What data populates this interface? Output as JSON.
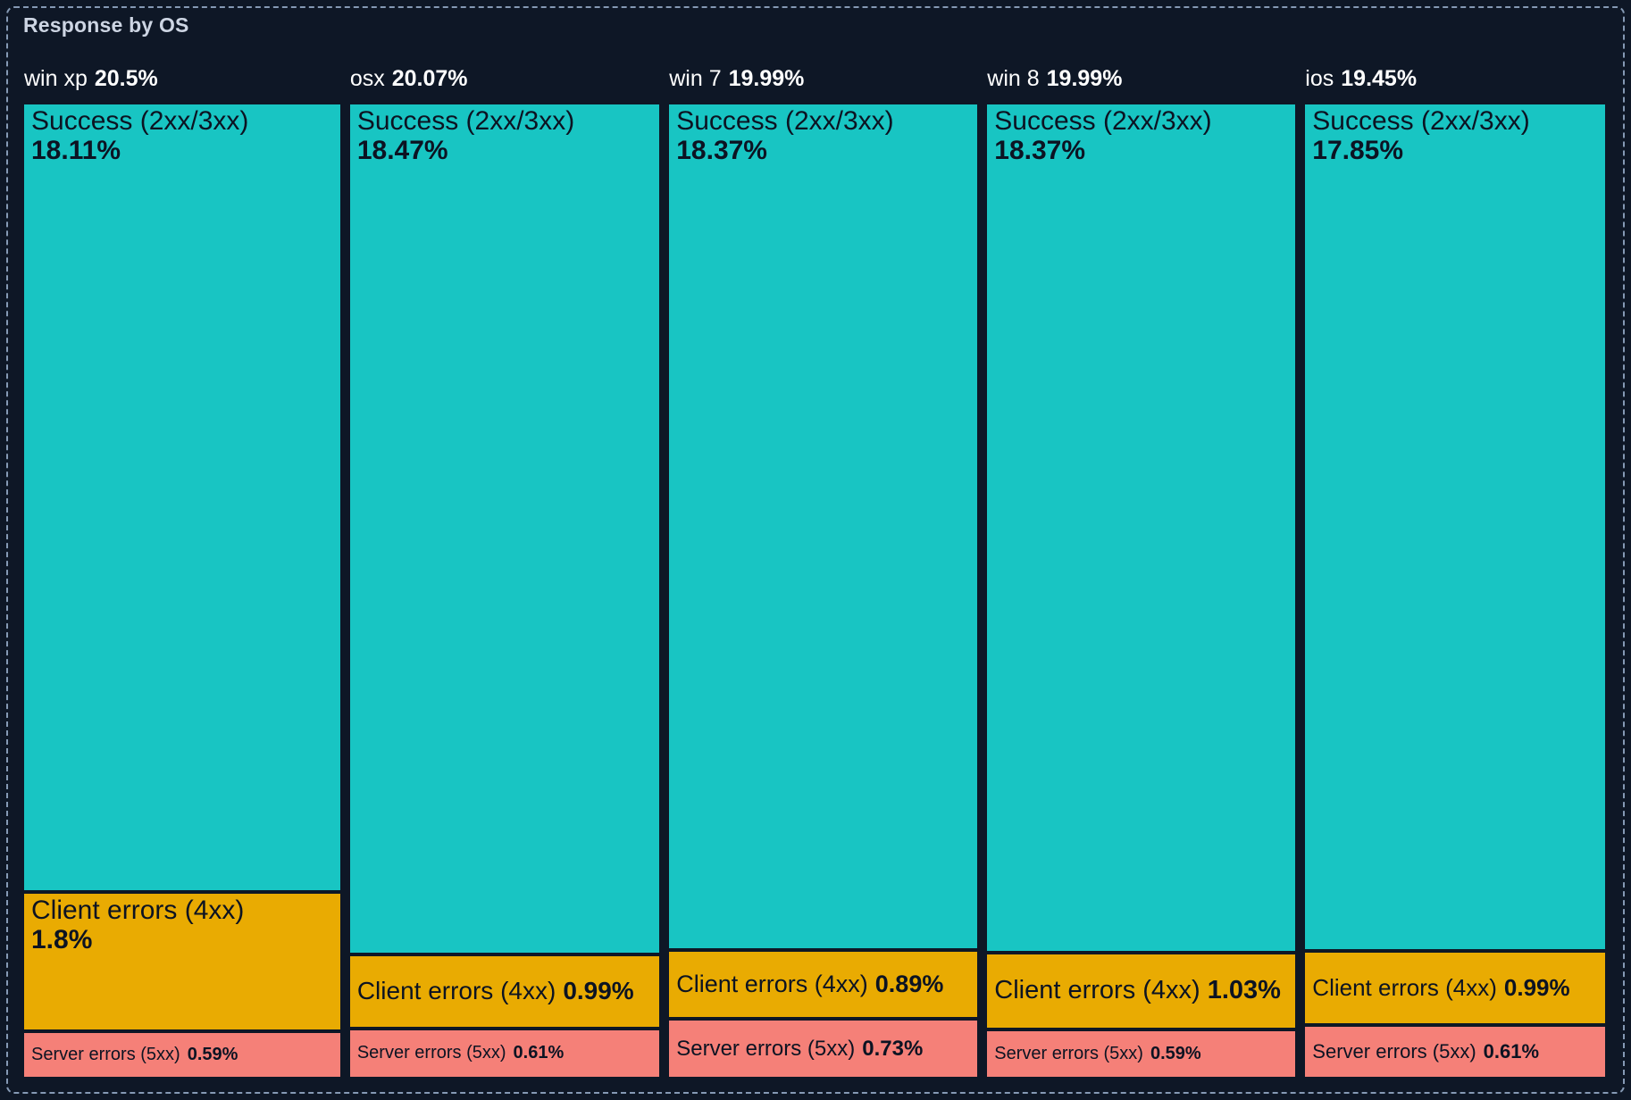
{
  "panel": {
    "title": "Response by OS"
  },
  "colors": {
    "background": "#0e1726",
    "selection_border": "#8599b4",
    "success": "#18c5c3",
    "client_errors": "#e9ab02",
    "server_errors": "#f58078",
    "cell_text": "#0c1322",
    "header_text": "#ffffff",
    "title_text": "#cdd5e3"
  },
  "chart_data": {
    "type": "treemap",
    "title": "Response by OS",
    "group_dimension": "OS",
    "value_unit": "%",
    "legend_position": "none",
    "series_names": [
      "Success (2xx/3xx)",
      "Client errors (4xx)",
      "Server errors (5xx)"
    ],
    "groups": [
      {
        "os": "win xp",
        "total_pct": "20.5%",
        "total_value": 20.5,
        "segments": [
          {
            "key": "success",
            "label": "Success (2xx/3xx)",
            "pct": "18.11%",
            "value": 18.11
          },
          {
            "key": "client",
            "label": "Client errors (4xx)",
            "pct": "1.8%",
            "value": 1.8
          },
          {
            "key": "server",
            "label": "Server errors (5xx)",
            "pct": "0.59%",
            "value": 0.59
          }
        ]
      },
      {
        "os": "osx",
        "total_pct": "20.07%",
        "total_value": 20.07,
        "segments": [
          {
            "key": "success",
            "label": "Success (2xx/3xx)",
            "pct": "18.47%",
            "value": 18.47
          },
          {
            "key": "client",
            "label": "Client errors (4xx)",
            "pct": "0.99%",
            "value": 0.99
          },
          {
            "key": "server",
            "label": "Server errors (5xx)",
            "pct": "0.61%",
            "value": 0.61
          }
        ]
      },
      {
        "os": "win 7",
        "total_pct": "19.99%",
        "total_value": 19.99,
        "segments": [
          {
            "key": "success",
            "label": "Success (2xx/3xx)",
            "pct": "18.37%",
            "value": 18.37
          },
          {
            "key": "client",
            "label": "Client errors (4xx)",
            "pct": "0.89%",
            "value": 0.89
          },
          {
            "key": "server",
            "label": "Server errors (5xx)",
            "pct": "0.73%",
            "value": 0.73
          }
        ]
      },
      {
        "os": "win 8",
        "total_pct": "19.99%",
        "total_value": 19.99,
        "segments": [
          {
            "key": "success",
            "label": "Success (2xx/3xx)",
            "pct": "18.37%",
            "value": 18.37
          },
          {
            "key": "client",
            "label": "Client errors (4xx)",
            "pct": "1.03%",
            "value": 1.03
          },
          {
            "key": "server",
            "label": "Server errors (5xx)",
            "pct": "0.59%",
            "value": 0.59
          }
        ]
      },
      {
        "os": "ios",
        "total_pct": "19.45%",
        "total_value": 19.45,
        "segments": [
          {
            "key": "success",
            "label": "Success (2xx/3xx)",
            "pct": "17.85%",
            "value": 17.85
          },
          {
            "key": "client",
            "label": "Client errors (4xx)",
            "pct": "0.99%",
            "value": 0.99
          },
          {
            "key": "server",
            "label": "Server errors (5xx)",
            "pct": "0.61%",
            "value": 0.61
          }
        ]
      }
    ]
  }
}
